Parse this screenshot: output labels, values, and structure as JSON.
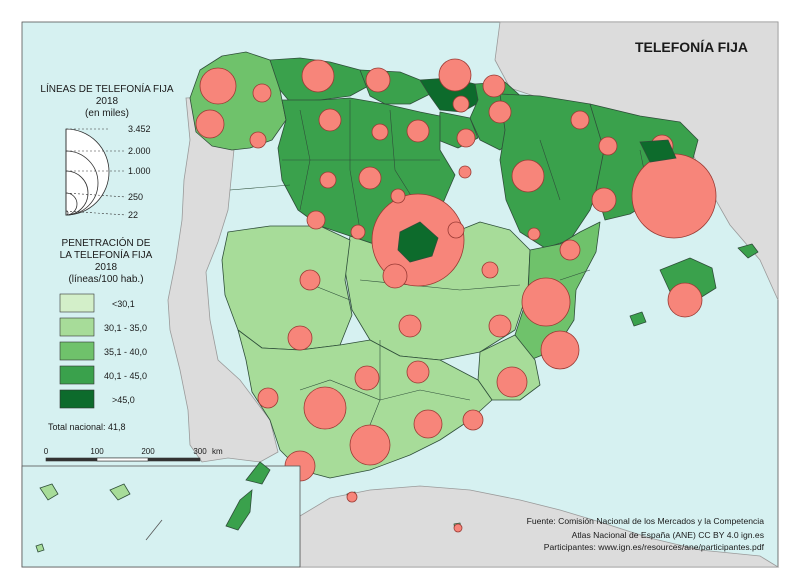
{
  "title": "TELEFONÍA FIJA",
  "legend_lines": {
    "title_line1": "LÍNEAS DE TELEFONÍA FIJA",
    "title_line2": "2018",
    "unit": "(en miles)",
    "values": [
      "3.452",
      "2.000",
      "1.000",
      "250",
      "22"
    ]
  },
  "legend_penetration": {
    "title_line1": "PENETRACIÓN DE",
    "title_line2": "LA TELEFONÍA FIJA",
    "title_line3": "2018",
    "unit": "(líneas/100 hab.)",
    "classes": [
      {
        "label": "<30,1",
        "color": "#d3efc9"
      },
      {
        "label": "30,1 - 35,0",
        "color": "#a7dc99"
      },
      {
        "label": "35,1 - 40,0",
        "color": "#6fc26b"
      },
      {
        "label": "40,1 - 45,0",
        "color": "#3aa14c"
      },
      {
        "label": ">45,0",
        "color": "#0d6b2c"
      }
    ],
    "total": "Total nacional: 41,8"
  },
  "scale_bar": {
    "ticks": [
      "0",
      "100",
      "200",
      "300"
    ],
    "unit": "km"
  },
  "source": {
    "line1": "Fuente: Comisión Nacional de los Mercados y la Competencia",
    "line2": "Atlas Nacional de España (ANE) CC BY 4.0 ign.es",
    "line3": "Participantes: www.ign.es/resources/ane/participantes.pdf"
  },
  "colors": {
    "sea": "#d6f1f1",
    "foreign_land": "#dcdcdc",
    "circle": "#f7857a",
    "circle_stroke": "#9a3a34",
    "border": "#2f4f3a"
  }
}
